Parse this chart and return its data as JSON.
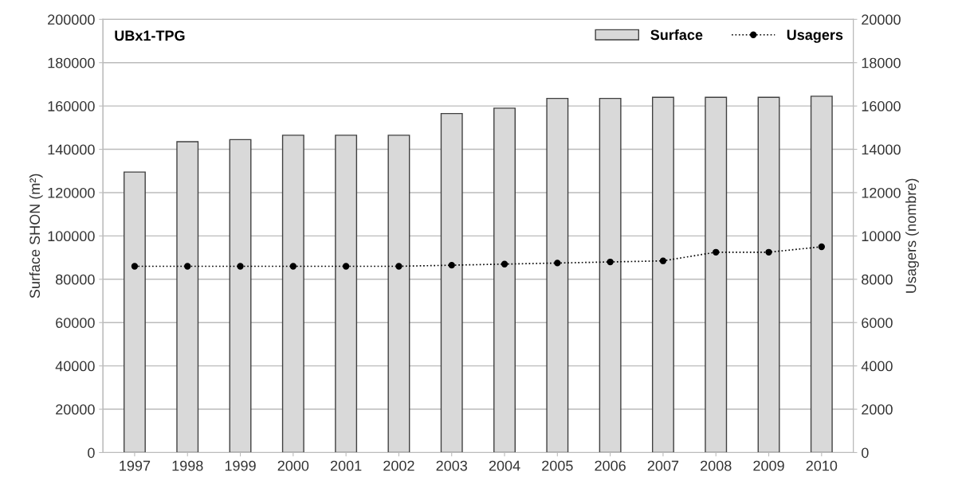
{
  "chart_data": {
    "type": "bar",
    "title": "UBx1-TPG",
    "ylabel": "Surface SHON (m²)",
    "y2label": "Usagers (nombre)",
    "categories": [
      "1997",
      "1998",
      "1999",
      "2000",
      "2001",
      "2002",
      "2003",
      "2004",
      "2005",
      "2006",
      "2007",
      "2008",
      "2009",
      "2010"
    ],
    "series": [
      {
        "name": "Surface",
        "color": "#d9d9d9",
        "values": [
          129500,
          143500,
          144500,
          146500,
          146500,
          146500,
          156500,
          159000,
          163500,
          163500,
          164000,
          164000,
          164000,
          164500
        ]
      },
      {
        "name": "Usagers",
        "type": "line",
        "axis": "y2",
        "color": "#000000",
        "marker": "circle",
        "line_style": "dotted",
        "values": [
          8600,
          8600,
          8600,
          8600,
          8600,
          8600,
          8650,
          8700,
          8750,
          8800,
          8850,
          9250,
          9250,
          9500
        ]
      }
    ],
    "ylim": [
      0,
      200000
    ],
    "yticks": [
      0,
      20000,
      40000,
      60000,
      80000,
      100000,
      120000,
      140000,
      160000,
      180000,
      200000
    ],
    "y2lim": [
      0,
      20000
    ],
    "y2ticks": [
      0,
      2000,
      4000,
      6000,
      8000,
      10000,
      12000,
      14000,
      16000,
      18000,
      20000
    ],
    "grid": "y",
    "legend": "top right"
  }
}
